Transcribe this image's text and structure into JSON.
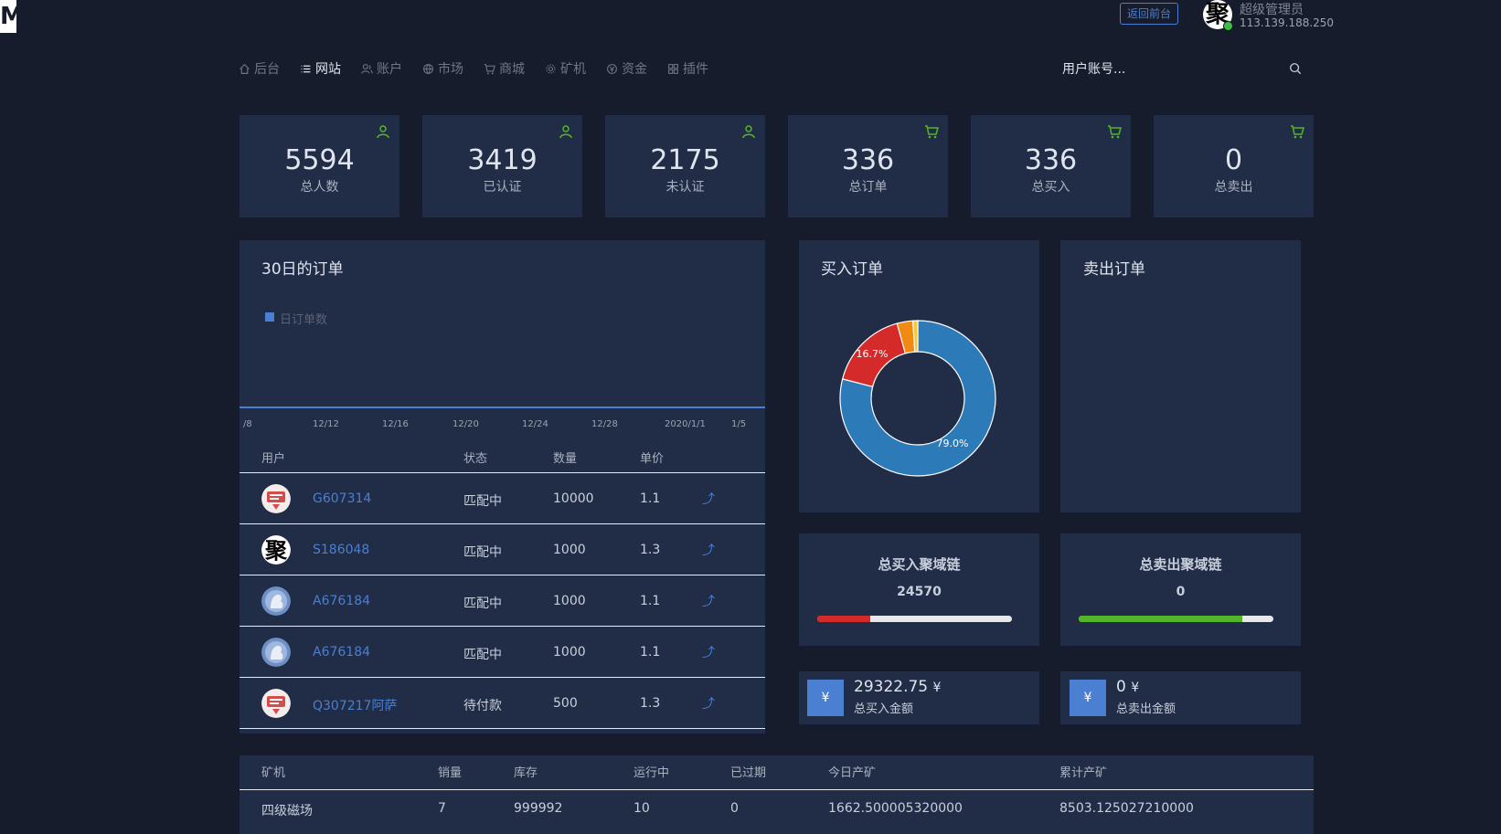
{
  "header": {
    "front_button": "返回前台",
    "admin_name": "超级管理员",
    "admin_ip": "113.139.188.250",
    "admin_avatar_text": "聚"
  },
  "nav": [
    {
      "label": "后台",
      "icon": "home-icon"
    },
    {
      "label": "网站",
      "icon": "list-icon",
      "active": true
    },
    {
      "label": "账户",
      "icon": "users-icon"
    },
    {
      "label": "市场",
      "icon": "globe-icon"
    },
    {
      "label": "商城",
      "icon": "cart-icon"
    },
    {
      "label": "矿机",
      "icon": "gear-icon"
    },
    {
      "label": "资金",
      "icon": "money-icon"
    },
    {
      "label": "插件",
      "icon": "grid-icon"
    }
  ],
  "search": {
    "placeholder": "用户账号..."
  },
  "stats": [
    {
      "value": "5594",
      "label": "总人数",
      "icon": "user-icon"
    },
    {
      "value": "3419",
      "label": "已认证",
      "icon": "user-icon"
    },
    {
      "value": "2175",
      "label": "未认证",
      "icon": "user-icon"
    },
    {
      "value": "336",
      "label": "总订单",
      "icon": "cart-icon"
    },
    {
      "value": "336",
      "label": "总买入",
      "icon": "cart-icon"
    },
    {
      "value": "0",
      "label": "总卖出",
      "icon": "cart-icon"
    }
  ],
  "orders_panel": {
    "title": "30日的订单",
    "columns": [
      "用户",
      "状态",
      "数量",
      "单价"
    ],
    "rows": [
      {
        "user": "G607314",
        "status": "匹配中",
        "qty": "10000",
        "price": "1.1",
        "avatar": "sticker"
      },
      {
        "user": "S186048",
        "status": "匹配中",
        "qty": "1000",
        "price": "1.3",
        "avatar": "glyph"
      },
      {
        "user": "A676184",
        "status": "匹配中",
        "qty": "1000",
        "price": "1.1",
        "avatar": "blue"
      },
      {
        "user": "A676184",
        "status": "匹配中",
        "qty": "1000",
        "price": "1.1",
        "avatar": "blue"
      },
      {
        "user": "Q307217阿萨",
        "status": "待付款",
        "qty": "500",
        "price": "1.3",
        "avatar": "sticker"
      }
    ]
  },
  "chart_data": [
    {
      "type": "area",
      "title": "30日的订单",
      "series": [
        {
          "name": "日订单数",
          "values": [
            0,
            0,
            0,
            0,
            0,
            0,
            0,
            0,
            0,
            0,
            0,
            0,
            0,
            0,
            0,
            0,
            0,
            0,
            0,
            0,
            0,
            0,
            0,
            0,
            0,
            0,
            0,
            0,
            0,
            0
          ]
        }
      ],
      "x_ticks": [
        "/8",
        "12/12",
        "12/16",
        "12/20",
        "12/24",
        "12/28",
        "2020/1/1",
        "1/5"
      ],
      "legend": "top-left",
      "color": "#4a7fd1"
    },
    {
      "type": "pie",
      "title": "买入订单",
      "slices": [
        {
          "value": 79.0,
          "label": "79.0%",
          "color": "#2d7ab8"
        },
        {
          "value": 16.7,
          "label": "16.7%",
          "color": "#d42a2a"
        },
        {
          "value": 3.3,
          "label": "",
          "color": "#f08a12"
        },
        {
          "value": 1.0,
          "label": "",
          "color": "#f4c83a"
        }
      ]
    },
    {
      "type": "pie",
      "title": "卖出订单",
      "slices": []
    }
  ],
  "buy_chain": {
    "title": "总买入聚域链",
    "value": "24570",
    "fill": 0.27,
    "color": "#d42a2a"
  },
  "sell_chain": {
    "title": "总卖出聚域链",
    "value": "0",
    "fill": 0.84,
    "color": "#55b52a"
  },
  "buy_amount": {
    "icon_text": "¥",
    "value": "29322.75",
    "unit": "¥",
    "label": "总买入金额"
  },
  "sell_amount": {
    "icon_text": "¥",
    "value": "0",
    "unit": "¥",
    "label": "总卖出金额"
  },
  "miners_table": {
    "columns": [
      "矿机",
      "销量",
      "库存",
      "运行中",
      "已过期",
      "今日产矿",
      "累计产矿"
    ],
    "rows": [
      [
        "四级磁场",
        "7",
        "999992",
        "10",
        "0",
        "1662.500005320000",
        "8503.125027210000"
      ]
    ]
  }
}
